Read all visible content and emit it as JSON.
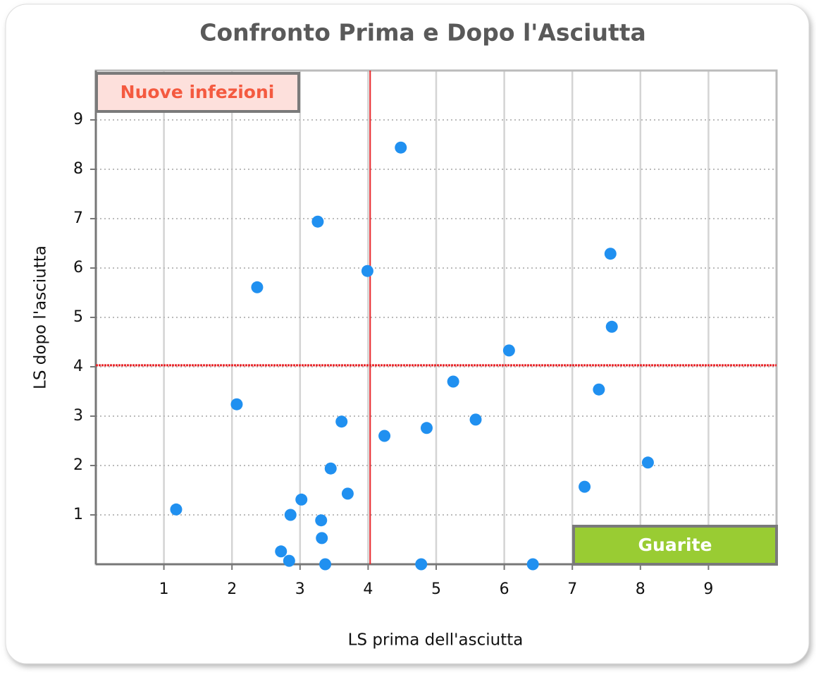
{
  "chart_data": {
    "type": "scatter",
    "title": "Confronto Prima e Dopo l'Asciutta",
    "x_label": "LS prima dell'asciutta",
    "y_label": "LS dopo l'asciutta",
    "x": [
      1.18,
      2.07,
      2.37,
      2.72,
      2.84,
      2.86,
      3.02,
      3.26,
      3.31,
      3.32,
      3.37,
      3.45,
      3.61,
      3.7,
      3.99,
      4.24,
      4.48,
      4.78,
      4.86,
      5.25,
      5.58,
      6.07,
      6.42,
      7.18,
      7.39,
      7.56,
      7.58,
      8.11
    ],
    "values": [
      1.11,
      3.24,
      5.61,
      0.26,
      0.07,
      1.0,
      1.31,
      6.94,
      0.89,
      0.53,
      0.0,
      1.94,
      2.89,
      1.43,
      5.94,
      2.6,
      8.44,
      0.0,
      2.76,
      3.7,
      2.93,
      4.33,
      0.0,
      1.57,
      3.54,
      6.29,
      4.81,
      2.06
    ],
    "color": "#2090f0",
    "xlim": [
      0,
      10
    ],
    "ylim": [
      0,
      10
    ],
    "xticks": [
      1,
      2,
      3,
      4,
      5,
      6,
      7,
      8,
      9
    ],
    "yticks": [
      1,
      2,
      3,
      4,
      5,
      6,
      7,
      8,
      9
    ],
    "grid": true,
    "reference_x": 4.03,
    "reference_y": 4.03,
    "reference_color": "#e8262a",
    "annotations": [
      "Nuove infezioni",
      "Guarite"
    ]
  }
}
